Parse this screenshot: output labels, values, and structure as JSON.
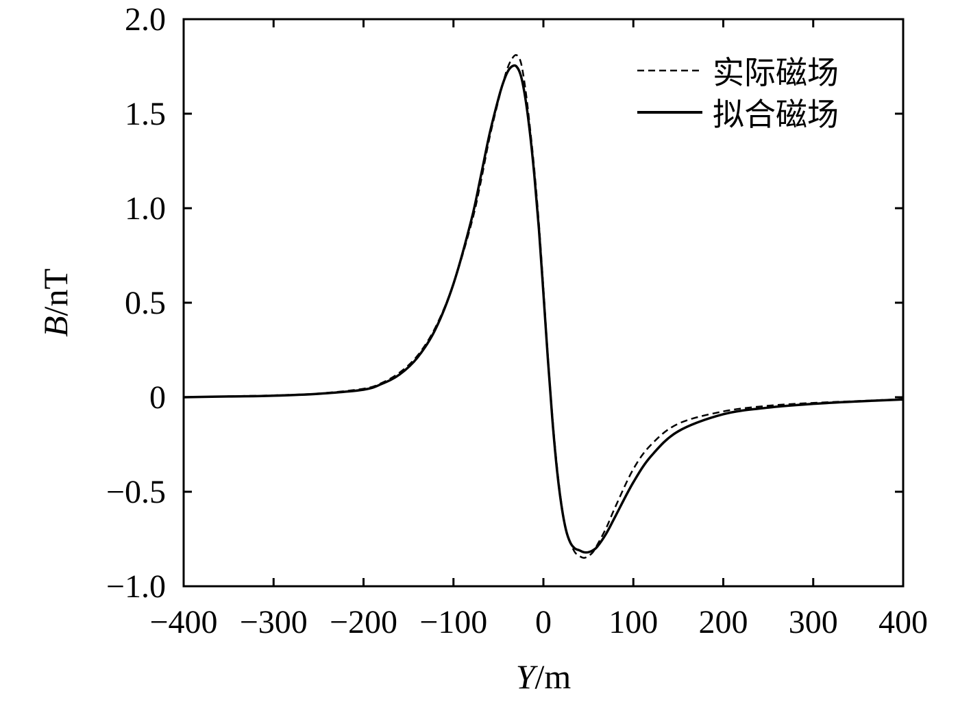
{
  "chart_data": {
    "type": "line",
    "xlabel_var": "Y",
    "xlabel_unit": "/m",
    "ylabel_var": "B",
    "ylabel_unit": "/nT",
    "xlim": [
      -400,
      400
    ],
    "ylim": [
      -1.0,
      2.0
    ],
    "xticks": [
      -400,
      -300,
      -200,
      -100,
      0,
      100,
      200,
      300,
      400
    ],
    "xtick_labels": [
      "−400",
      "−300",
      "−200",
      "−100",
      "0",
      "100",
      "200",
      "300",
      "400"
    ],
    "yticks": [
      -1.0,
      -0.5,
      0,
      0.5,
      1.0,
      1.5,
      2.0
    ],
    "ytick_labels": [
      "−1.0",
      "−0.5",
      "0",
      "0.5",
      "1.0",
      "1.5",
      "2.0"
    ],
    "grid": false,
    "legend_position": "top-right",
    "series": [
      {
        "name": "实际磁场",
        "style": "dashed",
        "color": "#000000",
        "x": [
          -400,
          -350,
          -300,
          -250,
          -200,
          -180,
          -160,
          -140,
          -120,
          -100,
          -80,
          -70,
          -60,
          -50,
          -45,
          -40,
          -35,
          -30,
          -25,
          -20,
          -15,
          -10,
          -5,
          0,
          5,
          10,
          15,
          20,
          25,
          30,
          35,
          40,
          45,
          50,
          55,
          60,
          70,
          80,
          100,
          120,
          150,
          200,
          250,
          300,
          350,
          400
        ],
        "y": [
          0.0,
          0.005,
          0.01,
          0.02,
          0.045,
          0.075,
          0.13,
          0.22,
          0.37,
          0.6,
          0.92,
          1.13,
          1.37,
          1.57,
          1.66,
          1.74,
          1.79,
          1.81,
          1.77,
          1.63,
          1.43,
          1.2,
          0.92,
          0.58,
          0.22,
          -0.1,
          -0.36,
          -0.56,
          -0.7,
          -0.77,
          -0.82,
          -0.84,
          -0.85,
          -0.84,
          -0.82,
          -0.78,
          -0.69,
          -0.58,
          -0.38,
          -0.25,
          -0.14,
          -0.075,
          -0.045,
          -0.03,
          -0.02,
          -0.01
        ]
      },
      {
        "name": "拟合磁场",
        "style": "solid",
        "color": "#000000",
        "x": [
          -400,
          -350,
          -300,
          -250,
          -200,
          -180,
          -160,
          -140,
          -120,
          -100,
          -80,
          -70,
          -60,
          -50,
          -45,
          -40,
          -35,
          -30,
          -25,
          -20,
          -15,
          -10,
          -5,
          0,
          5,
          10,
          15,
          20,
          25,
          30,
          35,
          40,
          45,
          50,
          55,
          60,
          70,
          80,
          100,
          120,
          150,
          200,
          250,
          300,
          350,
          400
        ],
        "y": [
          0.0,
          0.004,
          0.008,
          0.018,
          0.04,
          0.07,
          0.12,
          0.21,
          0.36,
          0.6,
          0.94,
          1.16,
          1.39,
          1.58,
          1.66,
          1.72,
          1.75,
          1.75,
          1.7,
          1.58,
          1.4,
          1.17,
          0.89,
          0.55,
          0.2,
          -0.12,
          -0.38,
          -0.57,
          -0.7,
          -0.77,
          -0.8,
          -0.81,
          -0.82,
          -0.82,
          -0.81,
          -0.79,
          -0.72,
          -0.63,
          -0.45,
          -0.31,
          -0.18,
          -0.09,
          -0.055,
          -0.035,
          -0.022,
          -0.012
        ]
      }
    ]
  }
}
